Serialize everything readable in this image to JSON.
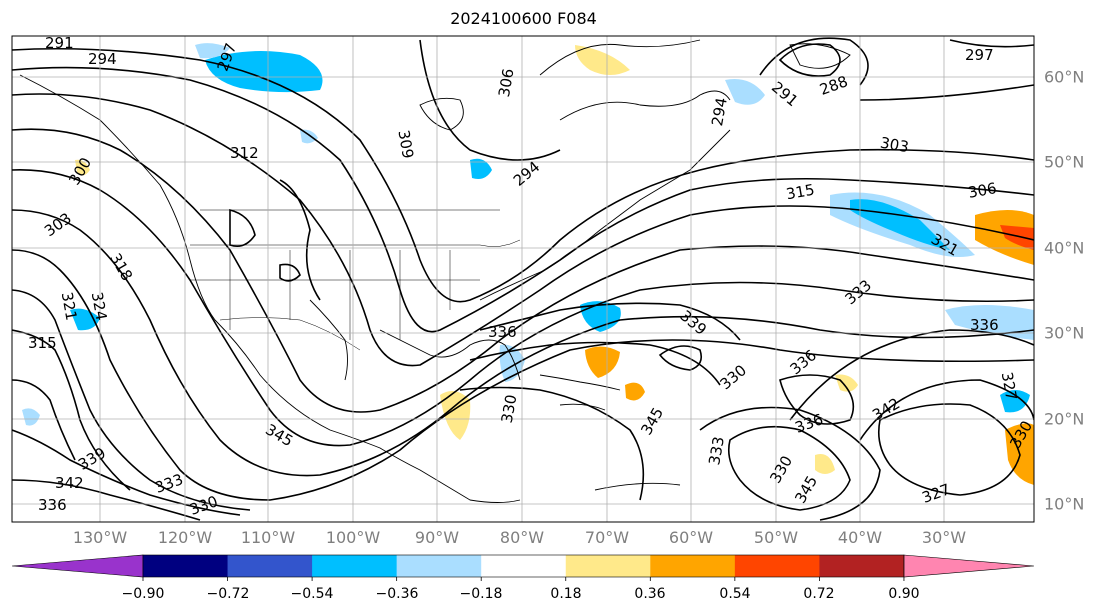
{
  "title": "2024100600 F084",
  "longitude_labels": [
    "130°W",
    "120°W",
    "110°W",
    "100°W",
    "90°W",
    "80°W",
    "70°W",
    "60°W",
    "50°W",
    "40°W",
    "30°W"
  ],
  "latitude_labels": [
    "60°N",
    "50°N",
    "40°N",
    "30°N",
    "20°N",
    "10°N"
  ],
  "contour_labels": [
    "291",
    "294",
    "297",
    "300",
    "303",
    "318",
    "321",
    "324",
    "315",
    "312",
    "309",
    "306",
    "294",
    "291",
    "288",
    "297",
    "294",
    "303",
    "306",
    "315",
    "321",
    "333",
    "336",
    "339",
    "336",
    "330",
    "339",
    "342",
    "336",
    "333",
    "330",
    "327",
    "345",
    "342",
    "345",
    "333",
    "330",
    "336",
    "330",
    "336",
    "345",
    "327",
    "330"
  ],
  "colorbar": {
    "ticks": [
      "−0.90",
      "−0.72",
      "−0.54",
      "−0.36",
      "−0.18",
      "0.18",
      "0.36",
      "0.54",
      "0.72",
      "0.90"
    ],
    "colors": [
      "#9933cc",
      "#000080",
      "#3355cc",
      "#00bfff",
      "#aadeff",
      "#ffffff",
      "#ffe98a",
      "#ffa500",
      "#ff4500",
      "#b22222",
      "#ff85b0"
    ]
  }
}
